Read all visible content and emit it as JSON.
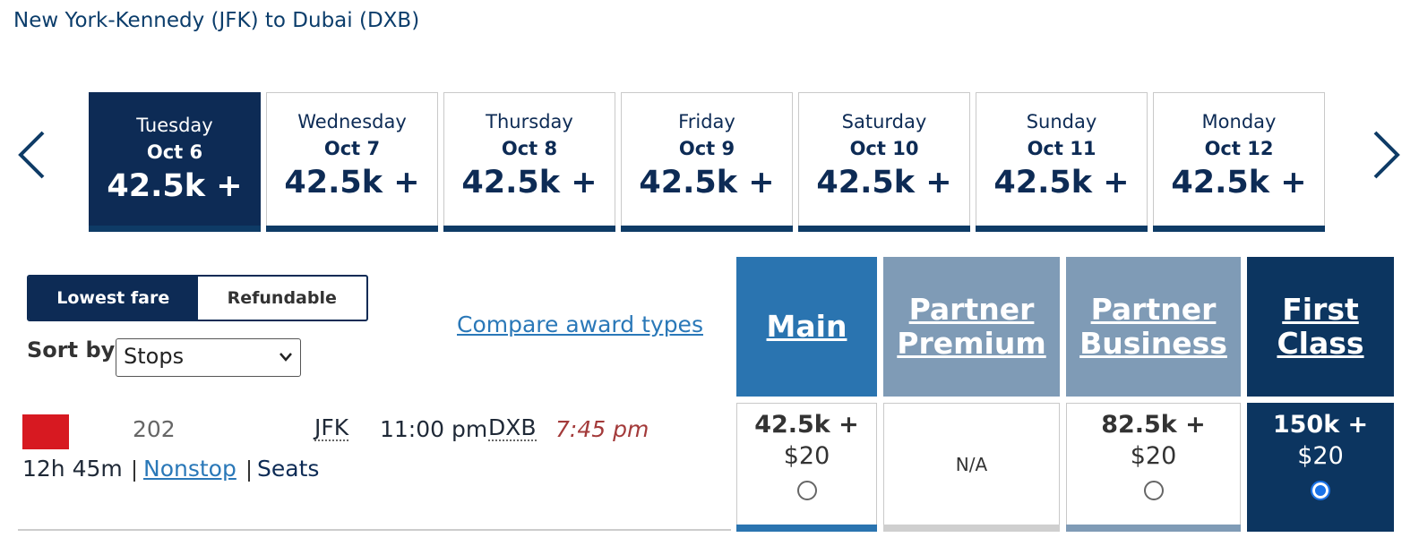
{
  "header": {
    "title": "New York-Kennedy (JFK) to Dubai (DXB)"
  },
  "date_tabs": [
    {
      "day": "Tuesday",
      "date": "Oct 6",
      "price": "42.5k +"
    },
    {
      "day": "Wednesday",
      "date": "Oct 7",
      "price": "42.5k +"
    },
    {
      "day": "Thursday",
      "date": "Oct 8",
      "price": "42.5k +"
    },
    {
      "day": "Friday",
      "date": "Oct 9",
      "price": "42.5k +"
    },
    {
      "day": "Saturday",
      "date": "Oct 10",
      "price": "42.5k +"
    },
    {
      "day": "Sunday",
      "date": "Oct 11",
      "price": "42.5k +"
    },
    {
      "day": "Monday",
      "date": "Oct 12",
      "price": "42.5k +"
    }
  ],
  "fare_toggle": [
    "Lowest fare",
    "Refundable"
  ],
  "sort": {
    "label": "Sort by",
    "value": "Stops"
  },
  "compare_link": "Compare award types",
  "cabins": [
    "Main",
    "Partner Premium",
    "Partner Business",
    "First Class"
  ],
  "flight": {
    "number": "202",
    "origin": "JFK",
    "depart": "11:00 pm",
    "destination": "DXB",
    "arrive": "7:45 pm",
    "duration": "12h 45m",
    "stops": "Nonstop",
    "seats": "Seats",
    "fares": [
      {
        "miles": "42.5k +",
        "fee": "$20"
      },
      {
        "status": "N/A"
      },
      {
        "miles": "82.5k +",
        "fee": "$20"
      },
      {
        "miles": "150k +",
        "fee": "$20"
      }
    ]
  }
}
